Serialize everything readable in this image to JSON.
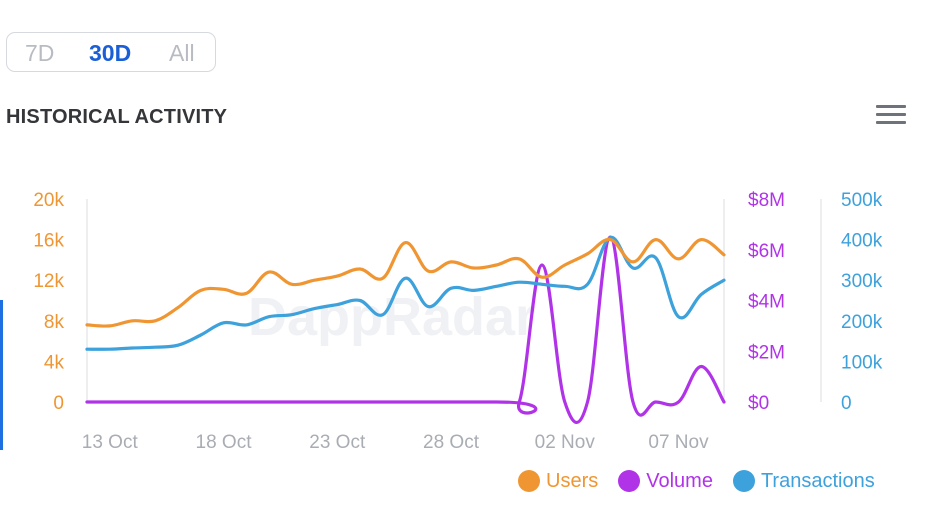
{
  "range_selector": {
    "options": [
      "7D",
      "30D",
      "All"
    ],
    "selected": "30D"
  },
  "page_title": "HISTORICAL ACTIVITY",
  "menu_icon": "hamburger-menu-icon",
  "colors": {
    "users": "#ef9633",
    "volume": "#b133e8",
    "transactions": "#3da1dc",
    "active_range": "#1a5fd6",
    "axis_labels_x": "#a9adb3",
    "watermark": "#f0f1f4"
  },
  "watermark": "DappRadar",
  "chart_data": {
    "type": "line",
    "x_tick_labels": [
      "13 Oct",
      "18 Oct",
      "23 Oct",
      "28 Oct",
      "02 Nov",
      "07 Nov"
    ],
    "x_tick_days": [
      2,
      7,
      12,
      17,
      22,
      27
    ],
    "x_range": [
      1,
      29
    ],
    "y_axes": [
      {
        "id": "users",
        "ticks": [
          "20k",
          "16k",
          "12k",
          "8k",
          "4k",
          "0"
        ],
        "range": [
          0,
          20000
        ]
      },
      {
        "id": "volume",
        "ticks": [
          "$8M",
          "$6M",
          "$4M",
          "$2M",
          "$0"
        ],
        "range": [
          0,
          8000000
        ]
      },
      {
        "id": "transactions",
        "ticks": [
          "500k",
          "400k",
          "300k",
          "200k",
          "100k",
          "0"
        ],
        "range": [
          0,
          500000
        ]
      }
    ],
    "series": [
      {
        "name": "Users",
        "axis": "users",
        "points": [
          [
            1,
            7600
          ],
          [
            2,
            7500
          ],
          [
            3,
            8000
          ],
          [
            4,
            8000
          ],
          [
            5,
            9300
          ],
          [
            6,
            11000
          ],
          [
            7,
            11100
          ],
          [
            8,
            10700
          ],
          [
            9,
            12800
          ],
          [
            10,
            11600
          ],
          [
            11,
            12000
          ],
          [
            12,
            12400
          ],
          [
            13,
            13100
          ],
          [
            14,
            12200
          ],
          [
            15,
            15700
          ],
          [
            16,
            12900
          ],
          [
            17,
            13800
          ],
          [
            18,
            13200
          ],
          [
            19,
            13500
          ],
          [
            20,
            14100
          ],
          [
            21,
            12300
          ],
          [
            22,
            13500
          ],
          [
            23,
            14600
          ],
          [
            24,
            16000
          ],
          [
            25,
            13800
          ],
          [
            26,
            16000
          ],
          [
            27,
            14100
          ],
          [
            28,
            16000
          ],
          [
            29,
            14500
          ]
        ]
      },
      {
        "name": "Volume",
        "axis": "volume",
        "points": [
          [
            1,
            0
          ],
          [
            19,
            0
          ],
          [
            20,
            0
          ],
          [
            21,
            5400000
          ],
          [
            22,
            0
          ],
          [
            23,
            0
          ],
          [
            24,
            6500000
          ],
          [
            25,
            0
          ],
          [
            26,
            0
          ],
          [
            27,
            0
          ],
          [
            28,
            1400000
          ],
          [
            29,
            0
          ]
        ]
      },
      {
        "name": "Transactions",
        "axis": "transactions",
        "points": [
          [
            1,
            130000
          ],
          [
            2,
            130000
          ],
          [
            3,
            133000
          ],
          [
            4,
            135000
          ],
          [
            5,
            140000
          ],
          [
            6,
            165000
          ],
          [
            7,
            195000
          ],
          [
            8,
            190000
          ],
          [
            9,
            210000
          ],
          [
            10,
            215000
          ],
          [
            11,
            230000
          ],
          [
            12,
            240000
          ],
          [
            13,
            250000
          ],
          [
            14,
            215000
          ],
          [
            15,
            305000
          ],
          [
            16,
            235000
          ],
          [
            17,
            280000
          ],
          [
            18,
            275000
          ],
          [
            19,
            285000
          ],
          [
            20,
            295000
          ],
          [
            21,
            290000
          ],
          [
            22,
            285000
          ],
          [
            23,
            290000
          ],
          [
            24,
            405000
          ],
          [
            25,
            330000
          ],
          [
            26,
            355000
          ],
          [
            27,
            210000
          ],
          [
            28,
            265000
          ],
          [
            29,
            300000
          ]
        ]
      }
    ],
    "legend": [
      "Users",
      "Volume",
      "Transactions"
    ],
    "legend_position": "bottom-right",
    "grid": false
  }
}
